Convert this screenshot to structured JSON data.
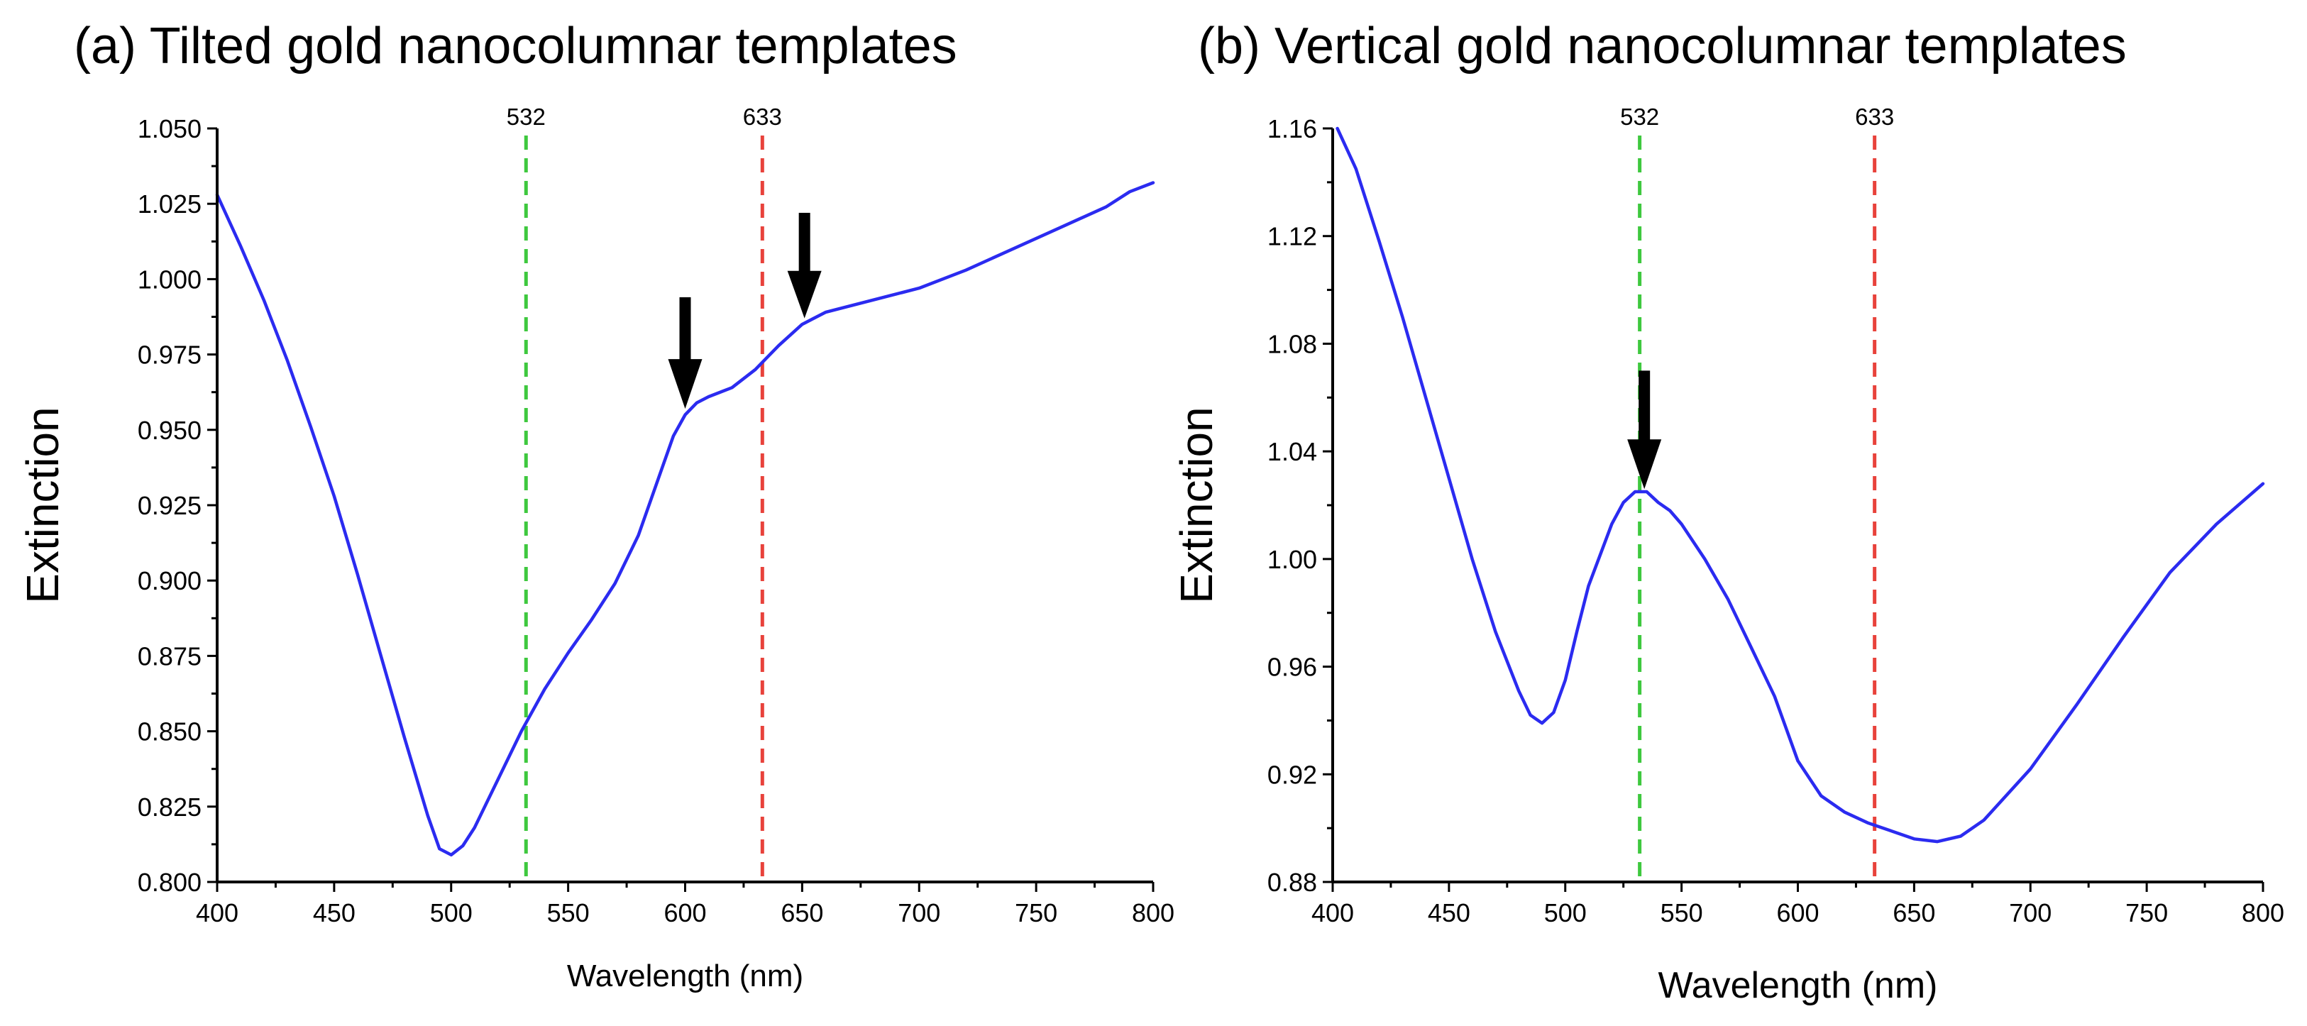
{
  "chart_data": [
    {
      "type": "line",
      "title": "(a) Tilted gold nanocolumnar templates",
      "xlabel": "Wavelength (nm)",
      "ylabel": "Extinction",
      "xlim": [
        400,
        800
      ],
      "ylim": [
        0.8,
        1.05
      ],
      "x_ticks": [
        "400",
        "450",
        "500",
        "550",
        "600",
        "650",
        "700",
        "750",
        "800"
      ],
      "y_ticks": [
        "0.800",
        "0.825",
        "0.850",
        "0.875",
        "0.900",
        "0.925",
        "0.950",
        "0.975",
        "1.000",
        "1.025",
        "1.050"
      ],
      "series": [
        {
          "name": "Extinction",
          "color": "#2b2bf0",
          "x": [
            400,
            410,
            420,
            430,
            440,
            450,
            460,
            470,
            480,
            490,
            495,
            500,
            505,
            510,
            520,
            530,
            540,
            550,
            560,
            570,
            580,
            590,
            595,
            600,
            605,
            610,
            620,
            630,
            640,
            650,
            660,
            670,
            680,
            700,
            720,
            740,
            760,
            780,
            790,
            800
          ],
          "y": [
            1.028,
            1.011,
            0.993,
            0.973,
            0.951,
            0.928,
            0.902,
            0.875,
            0.848,
            0.822,
            0.811,
            0.809,
            0.812,
            0.818,
            0.834,
            0.85,
            0.864,
            0.876,
            0.887,
            0.899,
            0.915,
            0.937,
            0.948,
            0.955,
            0.959,
            0.961,
            0.964,
            0.97,
            0.978,
            0.985,
            0.989,
            0.991,
            0.993,
            0.997,
            1.003,
            1.01,
            1.017,
            1.024,
            1.029,
            1.032
          ]
        }
      ],
      "reference_lines": [
        {
          "x": 532,
          "label": "532",
          "color": "#3ec83e"
        },
        {
          "x": 633,
          "label": "633",
          "color": "#e8423b"
        }
      ],
      "arrows": [
        {
          "x": 600,
          "y_tip": 0.957,
          "y_tail": 0.994
        },
        {
          "x": 651,
          "y_tip": 0.987,
          "y_tail": 1.022
        }
      ]
    },
    {
      "type": "line",
      "title": "(b) Vertical gold nanocolumnar templates",
      "xlabel": "Wavelength (nm)",
      "ylabel": "Extinction",
      "xlim": [
        400,
        800
      ],
      "ylim": [
        0.88,
        1.16
      ],
      "x_ticks": [
        "400",
        "450",
        "500",
        "550",
        "600",
        "650",
        "700",
        "750",
        "800"
      ],
      "y_ticks": [
        "0.88",
        "0.92",
        "0.96",
        "1.00",
        "1.04",
        "1.08",
        "1.12",
        "1.16"
      ],
      "series": [
        {
          "name": "Extinction",
          "color": "#2b2bf0",
          "x": [
            402,
            410,
            420,
            430,
            440,
            450,
            460,
            470,
            480,
            485,
            490,
            495,
            500,
            505,
            510,
            520,
            525,
            530,
            535,
            540,
            545,
            550,
            560,
            570,
            580,
            590,
            600,
            610,
            620,
            630,
            640,
            650,
            660,
            670,
            680,
            700,
            720,
            740,
            760,
            780,
            800
          ],
          "y": [
            1.16,
            1.145,
            1.118,
            1.09,
            1.06,
            1.03,
            1.0,
            0.973,
            0.951,
            0.942,
            0.939,
            0.943,
            0.955,
            0.973,
            0.99,
            1.013,
            1.021,
            1.025,
            1.025,
            1.021,
            1.018,
            1.013,
            1.0,
            0.985,
            0.967,
            0.949,
            0.925,
            0.912,
            0.906,
            0.902,
            0.899,
            0.896,
            0.895,
            0.897,
            0.903,
            0.922,
            0.946,
            0.971,
            0.995,
            1.013,
            1.028
          ]
        }
      ],
      "reference_lines": [
        {
          "x": 532,
          "label": "532",
          "color": "#3ec83e"
        },
        {
          "x": 633,
          "label": "633",
          "color": "#e8423b"
        }
      ],
      "arrows": [
        {
          "x": 534,
          "y_tip": 1.026,
          "y_tail": 1.07
        }
      ]
    }
  ]
}
